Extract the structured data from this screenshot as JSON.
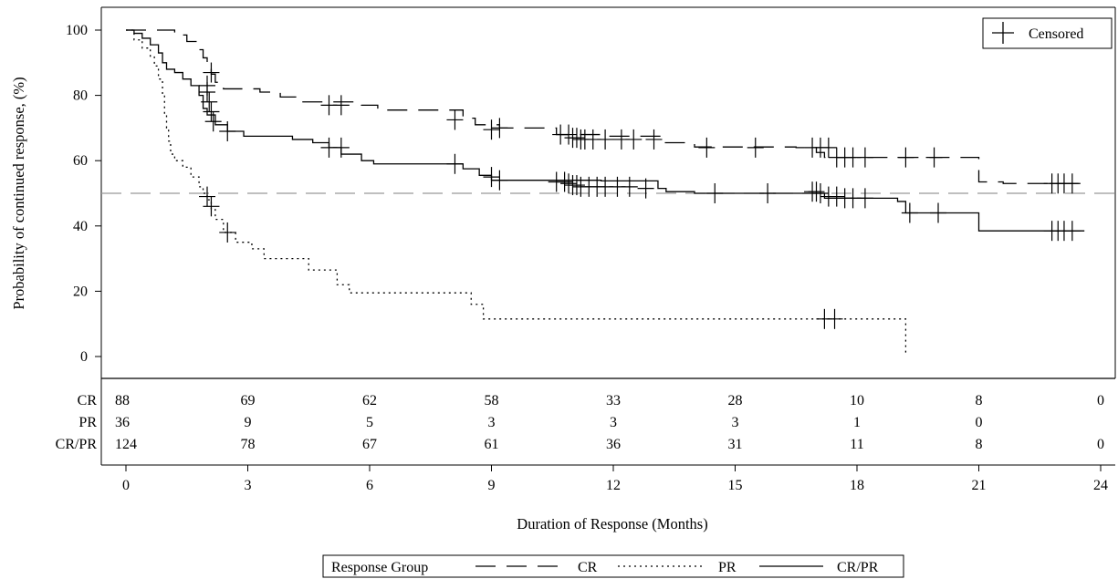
{
  "chart_data": {
    "type": "line",
    "subtype": "kaplan-meier",
    "title": "",
    "xlabel": "Duration of Response (Months)",
    "ylabel": "Probability of continued response, (%)",
    "xlim": [
      0,
      24
    ],
    "ylim": [
      0,
      100
    ],
    "x_ticks": [
      0,
      3,
      6,
      9,
      12,
      15,
      18,
      21,
      24
    ],
    "y_ticks": [
      0,
      20,
      40,
      60,
      80,
      100
    ],
    "reference_line": {
      "y": 50,
      "style": "dashed",
      "color": "#999999"
    },
    "censor_legend": {
      "label": "Censored",
      "position": "top-right"
    },
    "legend": {
      "title": "Response Group",
      "position": "bottom"
    },
    "series": [
      {
        "name": "CR",
        "style": "dashed",
        "points": [
          [
            0,
            100
          ],
          [
            1,
            100
          ],
          [
            1.2,
            98.5
          ],
          [
            1.5,
            96.5
          ],
          [
            1.8,
            94
          ],
          [
            1.9,
            91.5
          ],
          [
            2.0,
            89
          ],
          [
            2.1,
            86.5
          ],
          [
            2.2,
            84
          ],
          [
            2.4,
            82
          ],
          [
            3.3,
            81
          ],
          [
            3.8,
            79.5
          ],
          [
            4.3,
            78
          ],
          [
            5.8,
            77
          ],
          [
            6.2,
            75.5
          ],
          [
            8.3,
            73
          ],
          [
            8.6,
            71
          ],
          [
            9.2,
            70
          ],
          [
            10.6,
            68
          ],
          [
            11.7,
            67.5
          ],
          [
            13.2,
            65.5
          ],
          [
            14.0,
            64.2
          ],
          [
            16.5,
            64
          ],
          [
            17.0,
            62.5
          ],
          [
            17.2,
            61
          ],
          [
            21.0,
            61
          ],
          [
            21.0,
            53.5
          ],
          [
            21.6,
            53
          ],
          [
            23.5,
            53
          ]
        ],
        "censored": [
          [
            2.0,
            83
          ],
          [
            2.1,
            87
          ],
          [
            5.0,
            77
          ],
          [
            5.3,
            77
          ],
          [
            8.1,
            72.5
          ],
          [
            9.0,
            69.5
          ],
          [
            9.2,
            70
          ],
          [
            10.7,
            68
          ],
          [
            10.9,
            68
          ],
          [
            11.0,
            67
          ],
          [
            11.1,
            67
          ],
          [
            11.2,
            66.5
          ],
          [
            11.3,
            66.5
          ],
          [
            11.5,
            66.5
          ],
          [
            11.8,
            66.5
          ],
          [
            12.2,
            66.5
          ],
          [
            12.5,
            66.5
          ],
          [
            13.0,
            66.5
          ],
          [
            14.3,
            64
          ],
          [
            15.5,
            64
          ],
          [
            16.9,
            64
          ],
          [
            17.1,
            64
          ],
          [
            17.3,
            64
          ],
          [
            17.5,
            61
          ],
          [
            17.7,
            61
          ],
          [
            17.9,
            61
          ],
          [
            18.2,
            61
          ],
          [
            19.2,
            61
          ],
          [
            19.9,
            61
          ],
          [
            22.8,
            53
          ],
          [
            22.95,
            53
          ],
          [
            23.1,
            53
          ],
          [
            23.3,
            53
          ]
        ]
      },
      {
        "name": "PR",
        "style": "dotted",
        "points": [
          [
            0,
            100
          ],
          [
            0.2,
            97
          ],
          [
            0.4,
            94.5
          ],
          [
            0.6,
            92
          ],
          [
            0.7,
            89
          ],
          [
            0.8,
            85
          ],
          [
            0.9,
            80
          ],
          [
            0.95,
            74
          ],
          [
            1.0,
            70
          ],
          [
            1.05,
            66
          ],
          [
            1.1,
            62
          ],
          [
            1.2,
            60
          ],
          [
            1.4,
            58
          ],
          [
            1.6,
            55
          ],
          [
            1.8,
            52
          ],
          [
            1.9,
            50
          ],
          [
            2.0,
            48
          ],
          [
            2.1,
            45
          ],
          [
            2.2,
            42
          ],
          [
            2.4,
            38
          ],
          [
            2.7,
            35
          ],
          [
            3.1,
            33
          ],
          [
            3.4,
            30
          ],
          [
            4.3,
            30
          ],
          [
            4.5,
            26.5
          ],
          [
            5.0,
            26.5
          ],
          [
            5.2,
            22
          ],
          [
            5.5,
            19.5
          ],
          [
            8.2,
            19.5
          ],
          [
            8.5,
            16
          ],
          [
            8.8,
            11.5
          ],
          [
            19.2,
            11.5
          ],
          [
            19.2,
            1
          ]
        ],
        "censored": [
          [
            2.0,
            49
          ],
          [
            2.1,
            46
          ],
          [
            2.5,
            38
          ],
          [
            17.2,
            11.5
          ],
          [
            17.45,
            11.5
          ]
        ]
      },
      {
        "name": "CR/PR",
        "style": "solid",
        "points": [
          [
            0,
            100
          ],
          [
            0.2,
            99
          ],
          [
            0.4,
            97.5
          ],
          [
            0.6,
            95.5
          ],
          [
            0.8,
            93
          ],
          [
            0.9,
            90
          ],
          [
            1.0,
            88
          ],
          [
            1.2,
            87
          ],
          [
            1.4,
            85
          ],
          [
            1.6,
            83
          ],
          [
            1.8,
            80
          ],
          [
            1.9,
            76
          ],
          [
            2.0,
            74
          ],
          [
            2.2,
            71
          ],
          [
            2.5,
            69
          ],
          [
            2.9,
            67.5
          ],
          [
            4.1,
            66.5
          ],
          [
            4.6,
            65.5
          ],
          [
            5.0,
            64
          ],
          [
            5.3,
            62
          ],
          [
            5.8,
            60
          ],
          [
            6.1,
            59
          ],
          [
            8.3,
            57.5
          ],
          [
            8.7,
            55.5
          ],
          [
            9.0,
            54
          ],
          [
            11.7,
            53.8
          ],
          [
            13.1,
            51.5
          ],
          [
            13.3,
            50.5
          ],
          [
            14.0,
            50
          ],
          [
            17.0,
            50
          ],
          [
            17.2,
            48.5
          ],
          [
            19.0,
            48.5
          ],
          [
            19.0,
            47.5
          ],
          [
            19.2,
            44
          ],
          [
            21.0,
            44
          ],
          [
            21.0,
            38.5
          ],
          [
            23.6,
            38.5
          ]
        ],
        "censored": [
          [
            2.0,
            81
          ],
          [
            2.05,
            78
          ],
          [
            2.1,
            75
          ],
          [
            2.15,
            72
          ],
          [
            2.5,
            69
          ],
          [
            5.0,
            64
          ],
          [
            5.3,
            64
          ],
          [
            8.1,
            59
          ],
          [
            9.0,
            55
          ],
          [
            9.2,
            54
          ],
          [
            10.6,
            53.5
          ],
          [
            10.8,
            53.5
          ],
          [
            10.9,
            53
          ],
          [
            11.0,
            52.5
          ],
          [
            11.1,
            52.5
          ],
          [
            11.2,
            52
          ],
          [
            11.4,
            52
          ],
          [
            11.6,
            52
          ],
          [
            11.8,
            52
          ],
          [
            12.1,
            52
          ],
          [
            12.4,
            52
          ],
          [
            12.8,
            51.5
          ],
          [
            14.5,
            50
          ],
          [
            15.8,
            50
          ],
          [
            16.9,
            50.5
          ],
          [
            17.0,
            50.5
          ],
          [
            17.1,
            50
          ],
          [
            17.3,
            49
          ],
          [
            17.5,
            49
          ],
          [
            17.7,
            48.5
          ],
          [
            17.9,
            48.5
          ],
          [
            18.2,
            48.5
          ],
          [
            19.3,
            44
          ],
          [
            20.0,
            44
          ],
          [
            22.8,
            38.5
          ],
          [
            22.95,
            38.5
          ],
          [
            23.1,
            38.5
          ],
          [
            23.3,
            38.5
          ]
        ]
      }
    ],
    "risk_table": {
      "rows": [
        {
          "label": "CR",
          "counts": [
            "88",
            "69",
            "62",
            "58",
            "33",
            "28",
            "10",
            "8",
            "0"
          ]
        },
        {
          "label": "PR",
          "counts": [
            "36",
            "9",
            "5",
            "3",
            "3",
            "3",
            "1",
            "0",
            ""
          ]
        },
        {
          "label": "CR/PR",
          "counts": [
            "124",
            "78",
            "67",
            "61",
            "36",
            "31",
            "11",
            "8",
            "0"
          ]
        }
      ]
    }
  }
}
